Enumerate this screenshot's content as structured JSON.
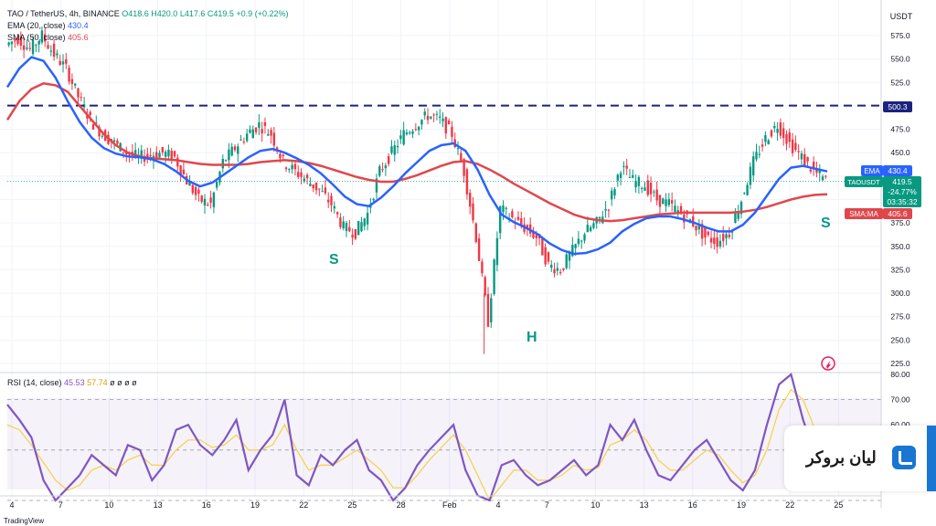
{
  "legend": {
    "symbol": "TAO / TetherUS, 4h, BINANCE",
    "open": "O418.6",
    "high": "H420.0",
    "low": "L417.6",
    "close": "C419.5",
    "change": "+0.9 (+0.22%)",
    "ema_label": "EMA (20, close)",
    "ema_value": "430.4",
    "sma_label": "SMA (50, close)",
    "sma_value": "405.6"
  },
  "rsi_legend": {
    "label": "RSI (14, close)",
    "value": "45.53",
    "ma_value": "57.74",
    "extra": "ø ø ø ø"
  },
  "currency": "USDT",
  "price_ticks": [
    "575.0",
    "550.0",
    "525.0",
    "500.0",
    "475.0",
    "450.0",
    "425.0",
    "400.0",
    "375.0",
    "350.0",
    "325.0",
    "300.0",
    "275.0",
    "250.0",
    "225.0"
  ],
  "rsi_ticks": [
    "80.00",
    "70.00",
    "60.00"
  ],
  "date_labels": [
    "4",
    "7",
    "10",
    "13",
    "16",
    "19",
    "22",
    "25",
    "28",
    "Feb",
    "4",
    "7",
    "10",
    "13",
    "16",
    "19",
    "22",
    "25"
  ],
  "badges": {
    "resistance": "500.3",
    "ema": "EMA",
    "ema_value": "430.4",
    "ticker": "TAOUSDT",
    "price": "419.5",
    "pct": "-24.77%",
    "countdown": "03:35:32",
    "sma": "SMA:MA",
    "sma_value": "405.6"
  },
  "annotations": {
    "left_shoulder": "S",
    "head": "H",
    "right_shoulder": "S"
  },
  "brand": {
    "text": "ليان بروكر"
  },
  "footer": "TradingView",
  "colors": {
    "up": "#089981",
    "down": "#f23645",
    "ema": "#2962ff",
    "sma": "#e0474c",
    "rsi": "#7e57c2",
    "rsi_ma": "#f5d142",
    "resistance": "#1a237e",
    "annotation": "#089981"
  },
  "chart_data": [
    {
      "type": "candlestick",
      "title": "TAO / TetherUS, 4h, BINANCE",
      "ylabel": "USDT",
      "ylim": [
        225,
        575
      ],
      "x": [
        "4",
        "7",
        "10",
        "13",
        "16",
        "19",
        "22",
        "25",
        "28",
        "Feb",
        "4",
        "7",
        "10",
        "13",
        "16",
        "19",
        "22",
        "25"
      ],
      "resistance_level": 500.3,
      "last_price": 419.5,
      "close_path": [
        565,
        572,
        560,
        575,
        555,
        540,
        510,
        485,
        470,
        460,
        450,
        445,
        448,
        450,
        445,
        420,
        400,
        395,
        440,
        455,
        470,
        480,
        470,
        440,
        430,
        420,
        410,
        395,
        370,
        365,
        385,
        430,
        450,
        470,
        480,
        490,
        485,
        470,
        430,
        360,
        270,
        390,
        380,
        370,
        360,
        330,
        325,
        345,
        365,
        375,
        395,
        435,
        420,
        415,
        400,
        395,
        385,
        375,
        360,
        355,
        365,
        400,
        440,
        465,
        480,
        460,
        445,
        430,
        420
      ],
      "ema": [
        520,
        540,
        552,
        548,
        530,
        505,
        483,
        466,
        455,
        449,
        446,
        445,
        443,
        438,
        430,
        420,
        414,
        418,
        427,
        436,
        445,
        452,
        454,
        450,
        444,
        437,
        428,
        416,
        403,
        395,
        393,
        402,
        414,
        428,
        440,
        452,
        458,
        460,
        452,
        432,
        405,
        384,
        376,
        370,
        363,
        353,
        346,
        342,
        343,
        347,
        354,
        366,
        374,
        380,
        382,
        382,
        379,
        375,
        370,
        366,
        366,
        373,
        386,
        404,
        422,
        434,
        436,
        433,
        430
      ],
      "sma": [
        485,
        505,
        518,
        524,
        522,
        515,
        500,
        485,
        470,
        458,
        450,
        446,
        444,
        443,
        442,
        440,
        438,
        437,
        437,
        437,
        438,
        440,
        441,
        442,
        441,
        439,
        436,
        432,
        428,
        424,
        421,
        419,
        419,
        422,
        426,
        431,
        436,
        440,
        441,
        438,
        432,
        425,
        417,
        410,
        403,
        396,
        390,
        384,
        380,
        378,
        377,
        378,
        380,
        382,
        384,
        385,
        386,
        386,
        386,
        386,
        386,
        387,
        389,
        392,
        396,
        400,
        403,
        405,
        405.6
      ]
    },
    {
      "type": "line",
      "title": "RSI (14, close)",
      "ylim": [
        30,
        80
      ],
      "reference_lines": [
        70,
        50,
        30
      ],
      "series": [
        {
          "name": "RSI",
          "values": [
            68,
            62,
            55,
            38,
            30,
            35,
            40,
            48,
            44,
            40,
            52,
            50,
            38,
            44,
            58,
            60,
            52,
            48,
            54,
            62,
            42,
            50,
            56,
            70,
            40,
            36,
            48,
            44,
            50,
            54,
            42,
            38,
            30,
            35,
            44,
            50,
            55,
            60,
            42,
            32,
            18,
            44,
            46,
            40,
            36,
            38,
            42,
            46,
            40,
            44,
            60,
            54,
            62,
            50,
            40,
            38,
            44,
            50,
            54,
            46,
            38,
            34,
            42,
            60,
            76,
            80,
            62,
            48,
            45.53
          ]
        },
        {
          "name": "MA",
          "values": [
            60,
            58,
            52,
            45,
            38,
            34,
            36,
            42,
            44,
            42,
            46,
            48,
            44,
            44,
            50,
            54,
            54,
            51,
            52,
            56,
            50,
            50,
            52,
            60,
            50,
            42,
            44,
            44,
            47,
            50,
            46,
            42,
            35,
            35,
            40,
            46,
            51,
            56,
            50,
            40,
            28,
            36,
            42,
            42,
            38,
            38,
            40,
            44,
            42,
            43,
            52,
            54,
            58,
            54,
            46,
            42,
            42,
            46,
            50,
            48,
            42,
            37,
            40,
            50,
            66,
            74,
            70,
            58,
            57.74
          ]
        }
      ]
    }
  ]
}
